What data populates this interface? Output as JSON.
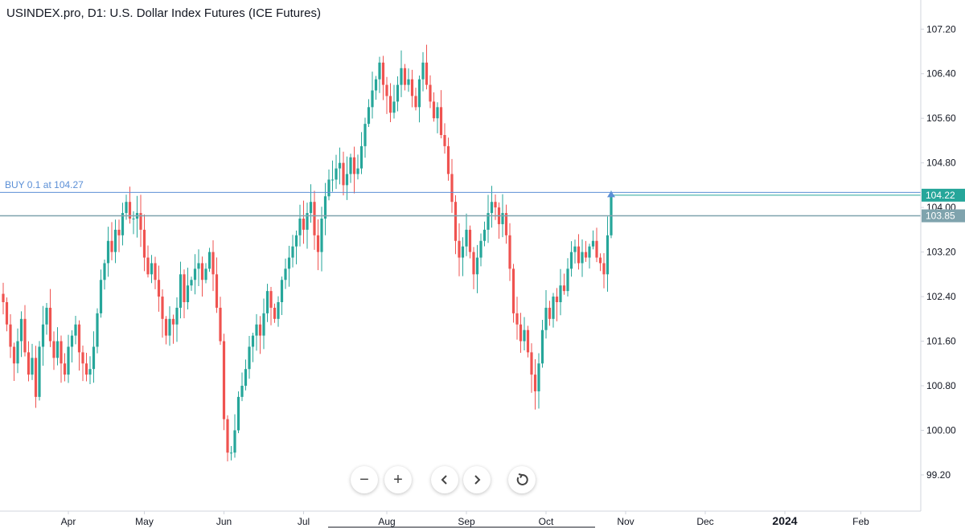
{
  "header": {
    "title": "USINDEX.pro, D1: U.S. Dollar Index Futures (ICE Futures)"
  },
  "order_line": {
    "label": "BUY 0.1 at 104.27",
    "price": 104.27,
    "color": "#5b8fd6"
  },
  "price_badges": [
    {
      "label": "104.22",
      "price": 104.22,
      "color": "#26a69a"
    },
    {
      "label": "103.85",
      "price": 103.85,
      "color": "#7fa3ad"
    }
  ],
  "nav": {
    "zoom_out": "−",
    "zoom_in": "+"
  },
  "colors": {
    "up": "#26a69a",
    "down": "#ef5350",
    "axis": "#d1d4dc",
    "text": "#131722"
  },
  "chart_data": {
    "type": "candlestick",
    "y_ticks": [
      "107.20",
      "106.40",
      "105.60",
      "104.80",
      "104.00",
      "103.20",
      "102.40",
      "101.60",
      "100.80",
      "100.00",
      "99.20"
    ],
    "ylim": [
      98.55,
      107.55
    ],
    "x_labels": [
      "Apr",
      "May",
      "Jun",
      "Jul",
      "Aug",
      "Sep",
      "Oct",
      "Nov",
      "Dec",
      "2024",
      "Feb"
    ],
    "x_label_index": [
      18,
      39,
      61,
      83,
      106,
      128,
      150,
      172,
      194,
      216,
      237
    ],
    "series_close": [
      102.3,
      101.9,
      101.5,
      101.2,
      101.6,
      102.0,
      101.4,
      101.0,
      101.3,
      100.6,
      101.5,
      101.9,
      102.2,
      101.6,
      101.3,
      101.6,
      101.2,
      101.0,
      101.5,
      101.7,
      101.9,
      101.4,
      101.2,
      101.0,
      101.1,
      101.5,
      102.1,
      102.7,
      103.0,
      103.4,
      103.2,
      103.6,
      103.5,
      103.9,
      104.1,
      103.8,
      103.8,
      103.9,
      103.6,
      103.1,
      102.8,
      103.0,
      102.7,
      102.4,
      102.0,
      101.7,
      102.0,
      101.9,
      102.2,
      102.8,
      102.3,
      102.6,
      102.7,
      102.9,
      103.0,
      102.7,
      102.9,
      103.2,
      102.8,
      102.2,
      101.6,
      100.2,
      99.6,
      99.6,
      100.0,
      100.6,
      100.8,
      101.1,
      101.5,
      101.7,
      101.9,
      101.7,
      102.1,
      102.5,
      102.2,
      102.0,
      102.3,
      102.7,
      102.9,
      103.1,
      103.3,
      103.5,
      103.8,
      103.6,
      103.9,
      104.1,
      103.5,
      103.2,
      103.8,
      104.2,
      104.5,
      104.5,
      104.7,
      104.8,
      104.4,
      104.6,
      104.9,
      104.6,
      104.7,
      105.1,
      105.5,
      105.8,
      106.1,
      106.3,
      106.6,
      106.2,
      106.0,
      105.7,
      105.9,
      106.2,
      106.5,
      106.2,
      106.3,
      106.0,
      105.8,
      106.3,
      106.6,
      106.2,
      105.9,
      105.6,
      105.8,
      105.3,
      105.1,
      104.6,
      104.1,
      103.4,
      103.1,
      103.3,
      103.6,
      103.2,
      102.8,
      103.1,
      103.4,
      103.6,
      103.9,
      104.1,
      104.0,
      103.7,
      103.9,
      103.5,
      102.9,
      102.1,
      101.9,
      101.6,
      101.8,
      101.4,
      101.0,
      100.7,
      101.2,
      101.8,
      102.2,
      102.0,
      102.4,
      102.3,
      102.6,
      102.5,
      102.9,
      103.2,
      103.3,
      103.0,
      103.2,
      103.1,
      103.3,
      103.4,
      103.1,
      103.0,
      102.8,
      103.5,
      104.2
    ],
    "last_price": 104.22
  }
}
